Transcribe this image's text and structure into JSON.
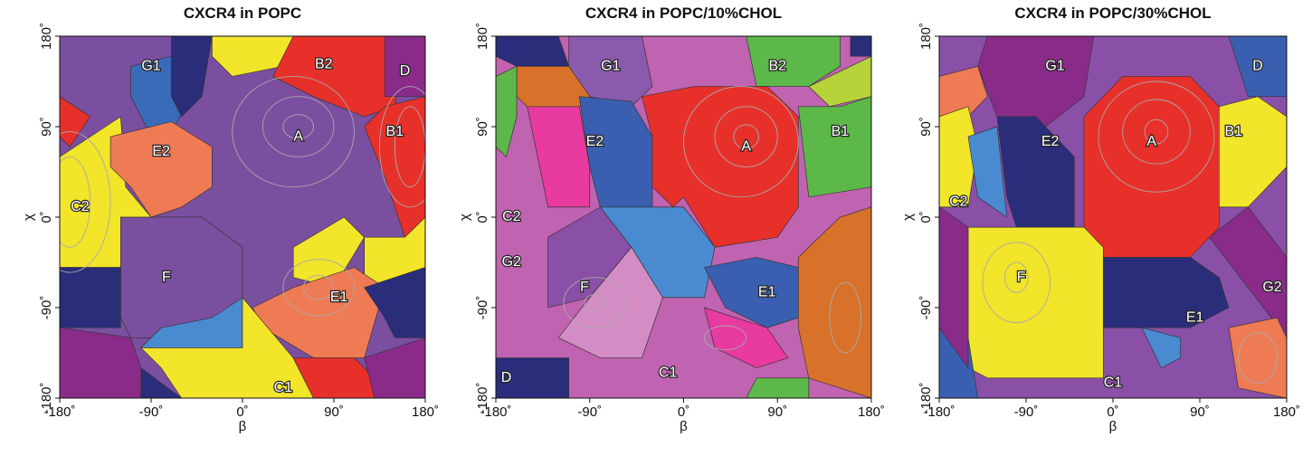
{
  "chart_data": [
    {
      "type": "cluster-map",
      "title": "CXCR4 in POPC",
      "xlabel": "β",
      "ylabel": "χ",
      "xlim": [
        -180,
        180
      ],
      "ylim": [
        -180,
        180
      ],
      "xticks": [
        {
          "value": -180,
          "label": "-180˚"
        },
        {
          "value": -90,
          "label": "-90˚"
        },
        {
          "value": 0,
          "label": "0˚"
        },
        {
          "value": 90,
          "label": "90˚"
        },
        {
          "value": 180,
          "label": "180˚"
        }
      ],
      "yticks": [
        {
          "value": -180,
          "label": "-180˚"
        },
        {
          "value": -90,
          "label": "-90˚"
        },
        {
          "value": 0,
          "label": "0˚"
        },
        {
          "value": 90,
          "label": "90˚"
        },
        {
          "value": 180,
          "label": "180˚"
        }
      ],
      "annotations": [
        {
          "text": "G1",
          "x": -90,
          "y": 150
        },
        {
          "text": "B2",
          "x": 80,
          "y": 152
        },
        {
          "text": "D",
          "x": 160,
          "y": 145
        },
        {
          "text": "A",
          "x": 55,
          "y": 80
        },
        {
          "text": "B1",
          "x": 150,
          "y": 85
        },
        {
          "text": "E2",
          "x": -80,
          "y": 65
        },
        {
          "text": "C2",
          "x": -160,
          "y": 10
        },
        {
          "text": "F",
          "x": -75,
          "y": -60
        },
        {
          "text": "E1",
          "x": 95,
          "y": -80
        },
        {
          "text": "C1",
          "x": 40,
          "y": -170
        }
      ]
    },
    {
      "type": "cluster-map",
      "title": "CXCR4 in POPC/10%CHOL",
      "xlabel": "β",
      "ylabel": "χ",
      "xlim": [
        -180,
        180
      ],
      "ylim": [
        -180,
        180
      ],
      "xticks": [
        {
          "value": -180,
          "label": "-180˚"
        },
        {
          "value": -90,
          "label": "-90˚"
        },
        {
          "value": 0,
          "label": "0˚"
        },
        {
          "value": 90,
          "label": "90˚"
        },
        {
          "value": 180,
          "label": "180˚"
        }
      ],
      "yticks": [
        {
          "value": -180,
          "label": "-180˚"
        },
        {
          "value": -90,
          "label": "-90˚"
        },
        {
          "value": 0,
          "label": "0˚"
        },
        {
          "value": 90,
          "label": "90˚"
        },
        {
          "value": 180,
          "label": "180˚"
        }
      ],
      "annotations": [
        {
          "text": "G1",
          "x": -70,
          "y": 150
        },
        {
          "text": "B2",
          "x": 90,
          "y": 150
        },
        {
          "text": "A",
          "x": 60,
          "y": 70
        },
        {
          "text": "B1",
          "x": 150,
          "y": 85
        },
        {
          "text": "E2",
          "x": -85,
          "y": 75
        },
        {
          "text": "C2",
          "x": -165,
          "y": 0
        },
        {
          "text": "G2",
          "x": -165,
          "y": -45
        },
        {
          "text": "F",
          "x": -95,
          "y": -70
        },
        {
          "text": "E1",
          "x": 80,
          "y": -75
        },
        {
          "text": "D",
          "x": -170,
          "y": -160
        },
        {
          "text": "C1",
          "x": -15,
          "y": -155
        }
      ]
    },
    {
      "type": "cluster-map",
      "title": "CXCR4 in POPC/30%CHOL",
      "xlabel": "β",
      "ylabel": "χ",
      "xlim": [
        -180,
        180
      ],
      "ylim": [
        -180,
        180
      ],
      "xticks": [
        {
          "value": -180,
          "label": "-180˚"
        },
        {
          "value": -90,
          "label": "-90˚"
        },
        {
          "value": 0,
          "label": "0˚"
        },
        {
          "value": 90,
          "label": "90˚"
        },
        {
          "value": 180,
          "label": "180˚"
        }
      ],
      "yticks": [
        {
          "value": -180,
          "label": "-180˚"
        },
        {
          "value": -90,
          "label": "-90˚"
        },
        {
          "value": 0,
          "label": "0˚"
        },
        {
          "value": 90,
          "label": "90˚"
        },
        {
          "value": 180,
          "label": "180˚"
        }
      ],
      "annotations": [
        {
          "text": "G1",
          "x": -60,
          "y": 150
        },
        {
          "text": "D",
          "x": 150,
          "y": 150
        },
        {
          "text": "A",
          "x": 40,
          "y": 75
        },
        {
          "text": "B1",
          "x": 125,
          "y": 85
        },
        {
          "text": "E2",
          "x": -65,
          "y": 75
        },
        {
          "text": "C2",
          "x": -160,
          "y": 15
        },
        {
          "text": "F",
          "x": -95,
          "y": -60
        },
        {
          "text": "G2",
          "x": 165,
          "y": -70
        },
        {
          "text": "E1",
          "x": 85,
          "y": -100
        },
        {
          "text": "C1",
          "x": 0,
          "y": -165
        }
      ]
    }
  ]
}
